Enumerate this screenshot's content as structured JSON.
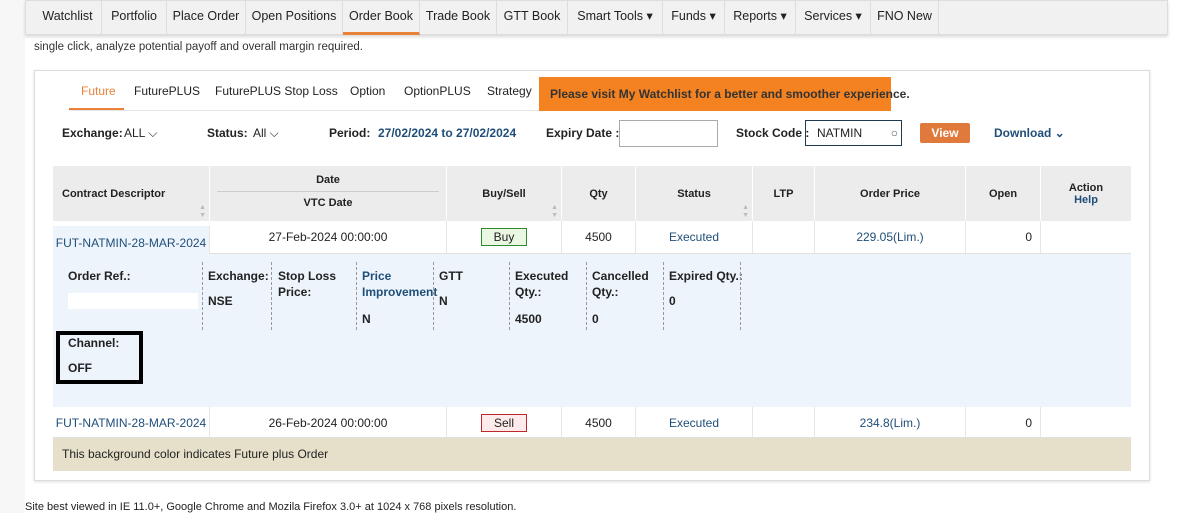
{
  "nav": {
    "items": [
      "Watchlist",
      "Portfolio",
      "Place Order",
      "Open Positions",
      "Order Book",
      "Trade Book",
      "GTT Book",
      "Smart Tools ▾",
      "Funds ▾",
      "Reports ▾",
      "Services ▾",
      "FNO New"
    ],
    "active": "Order Book"
  },
  "intro": "single click, analyze potential payoff and overall margin required.",
  "tabs": [
    "Future",
    "FuturePLUS",
    "FuturePLUS Stop Loss",
    "Option",
    "OptionPLUS",
    "Strategy"
  ],
  "banner": "Please visit My Watchlist for a better and smoother experience.",
  "filters": {
    "exchange_label": "Exchange:",
    "exchange_value": "ALL ⌵",
    "status_label": "Status:",
    "status_value": "All ⌵",
    "period_label": "Period:",
    "period_value": "27/02/2024 to 27/02/2024",
    "expiry_label": "Expiry Date :",
    "expiry_value": "",
    "stock_label": "Stock Code :",
    "stock_value": "NATMIN",
    "view": "View",
    "download": "Download ⌄"
  },
  "columns": {
    "contract": "Contract Descriptor",
    "date": "Date",
    "vtc": "VTC Date",
    "buysell": "Buy/Sell",
    "qty": "Qty",
    "status": "Status",
    "ltp": "LTP",
    "price": "Order Price",
    "open": "Open",
    "action": "Action",
    "help": "Help"
  },
  "rows": [
    {
      "contract": "FUT-NATMIN-28-MAR-2024",
      "date": "27-Feb-2024 00:00:00",
      "side": "Buy",
      "qty": "4500",
      "status": "Executed",
      "ltp": "",
      "price": "229.05(Lim.)",
      "open": "0"
    },
    {
      "contract": "FUT-NATMIN-28-MAR-2024",
      "date": "26-Feb-2024 00:00:00",
      "side": "Sell",
      "qty": "4500",
      "status": "Executed",
      "ltp": "",
      "price": "234.8(Lim.)",
      "open": "0"
    }
  ],
  "detail": {
    "order_ref": "Order Ref.:",
    "exchange": "Exchange:",
    "exchange_v": "NSE",
    "stoploss": "Stop Loss Price:",
    "pi": "Price Improvement",
    "pi_v": "N",
    "gtt": "GTT",
    "gtt_v": "N",
    "exec": "Executed Qty.:",
    "exec_v": "4500",
    "canc": "Cancelled Qty.:",
    "canc_v": "0",
    "exp": "Expired Qty.:",
    "exp_v": "0",
    "channel": "Channel:",
    "channel_v": "OFF"
  },
  "note": "This background color indicates Future plus Order",
  "footer": "Site best viewed in IE 11.0+, Google Chrome and Mozila Firefox 3.0+ at 1024 x 768 pixels resolution.",
  "colors": {
    "accent": "#e8823a",
    "banner": "#f58220",
    "link": "#1f4e79",
    "detail_bg": "#edf4fc",
    "note_bg": "#e6e0ca"
  }
}
